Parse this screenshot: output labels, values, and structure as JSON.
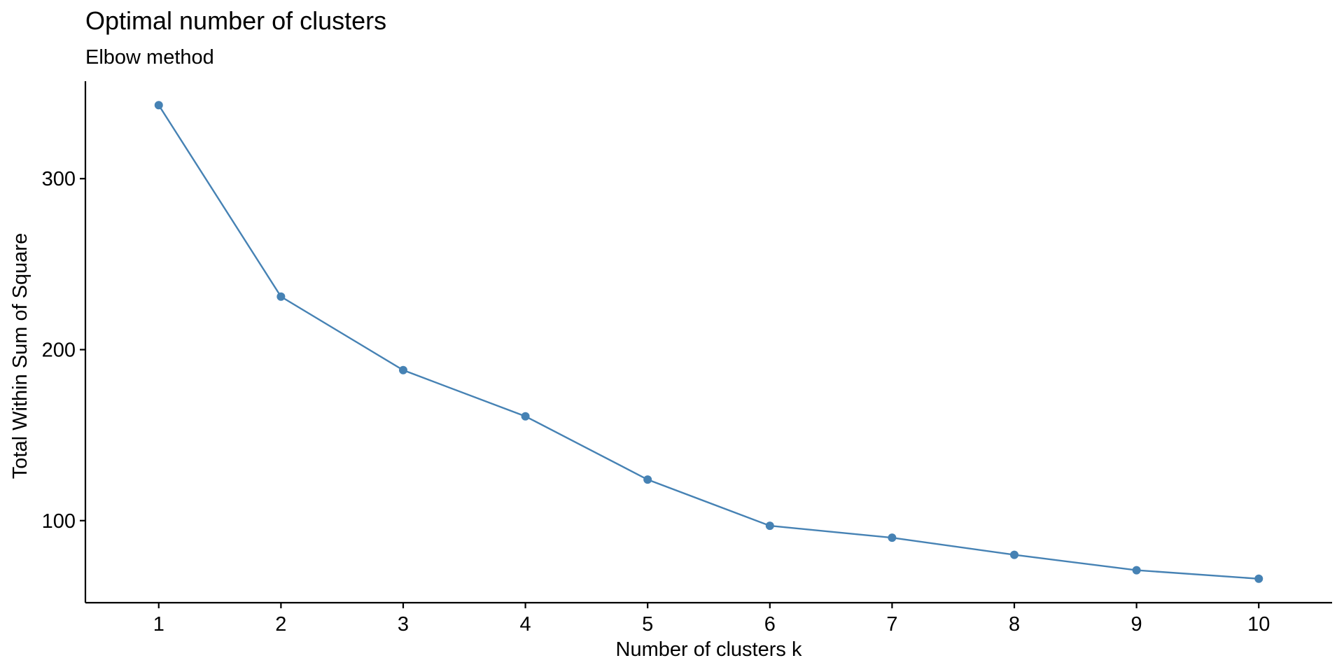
{
  "chart_data": {
    "type": "line",
    "title": "Optimal number of clusters",
    "subtitle": "Elbow method",
    "xlabel": "Number of clusters k",
    "ylabel": "Total Within Sum of Square",
    "x": [
      1,
      2,
      3,
      4,
      5,
      6,
      7,
      8,
      9,
      10
    ],
    "series": [
      {
        "values": [
          343,
          231,
          188,
          161,
          124,
          97,
          90,
          80,
          71,
          66
        ]
      }
    ],
    "x_ticks": [
      "1",
      "2",
      "3",
      "4",
      "5",
      "6",
      "7",
      "8",
      "9",
      "10"
    ],
    "y_ticks": [
      100,
      200,
      300
    ],
    "y_tick_labels": [
      "100",
      "200",
      "300"
    ],
    "xlim": [
      0.4,
      10.6
    ],
    "ylim": [
      52,
      357
    ],
    "grid": false,
    "legend": "none",
    "colors": {
      "line": "#4682B4",
      "point": "#4682B4"
    }
  }
}
